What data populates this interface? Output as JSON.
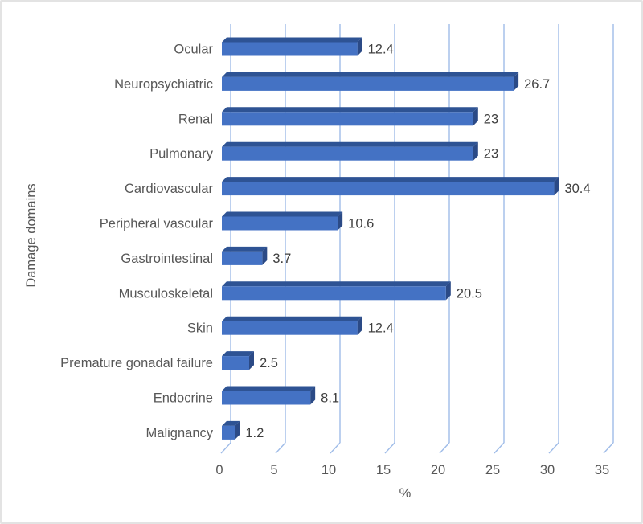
{
  "figure": {
    "background": "#ffffff",
    "border_color": "#e3e3e3"
  },
  "chart_data": {
    "type": "bar",
    "orientation": "horizontal",
    "title": "",
    "xlabel": "%",
    "ylabel": "Damage domains",
    "categories": [
      "Ocular",
      "Neuropsychiatric",
      "Renal",
      "Pulmonary",
      "Cardiovascular",
      "Peripheral vascular",
      "Gastrointestinal",
      "Musculoskeletal",
      "Skin",
      "Premature gonadal failure",
      "Endocrine",
      "Malignancy"
    ],
    "values": [
      12.4,
      26.7,
      23,
      23,
      30.4,
      10.6,
      3.7,
      20.5,
      12.4,
      2.5,
      8.1,
      1.2
    ],
    "value_labels": [
      "12.4",
      "26.7",
      "23",
      "23",
      "30.4",
      "10.6",
      "3.7",
      "20.5",
      "12.4",
      "2.5",
      "8.1",
      "1.2"
    ],
    "xticks": [
      0,
      5,
      10,
      15,
      20,
      25,
      30,
      35
    ],
    "xlim": [
      0,
      35
    ],
    "grid": true,
    "legend": false,
    "style": {
      "bar_front": "#4472C4",
      "bar_top": "#2E5394",
      "bar_side": "#2B4A86",
      "gridline": "#9FBCE8",
      "label_color": "#575757",
      "value_color": "#3F3F3F",
      "effect": "3d-bevel"
    }
  }
}
